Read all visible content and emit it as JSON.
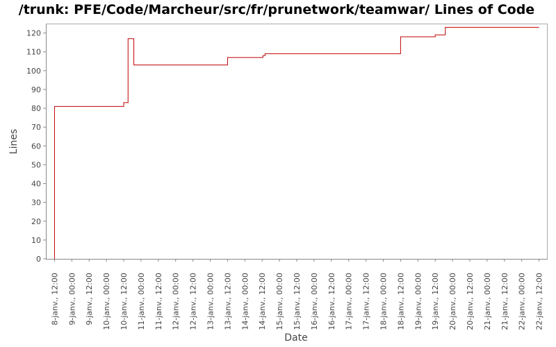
{
  "chart_data": {
    "type": "line",
    "title": "/trunk: PFE/Code/Marcheur/src/fr/prunetwork/teamwar/ Lines of Code",
    "xlabel": "Date",
    "ylabel": "Lines",
    "ylim": [
      0,
      125
    ],
    "yticks": [
      0,
      10,
      20,
      30,
      40,
      50,
      60,
      70,
      80,
      90,
      100,
      110,
      120
    ],
    "xlim": [
      "8 janv. 06:00",
      "22 janv. 18:00"
    ],
    "xtick_labels": [
      "8-janv., 12:00",
      "9-janv., 00:00",
      "9-janv., 12:00",
      "10-janv., 00:00",
      "10-janv., 12:00",
      "11-janv., 00:00",
      "11-janv., 12:00",
      "12-janv., 00:00",
      "12-janv., 12:00",
      "13-janv., 00:00",
      "13-janv., 12:00",
      "14-janv., 00:00",
      "14-janv., 12:00",
      "15-janv., 00:00",
      "15-janv., 12:00",
      "16-janv., 00:00",
      "16-janv., 12:00",
      "17-janv., 00:00",
      "17-janv., 12:00",
      "18-janv., 00:00",
      "18-janv., 12:00",
      "19-janv., 00:00",
      "19-janv., 12:00",
      "20-janv., 00:00",
      "20-janv., 12:00",
      "21-janv., 00:00",
      "21-janv., 12:00",
      "22-janv., 00:00",
      "22-janv., 12:00"
    ],
    "step": true,
    "grid": false,
    "colors": {
      "line": "#c00000",
      "axis": "#888888",
      "text": "#444444"
    },
    "series": [
      {
        "x": [
          "8 janv. 12:00",
          "10 janv. 12:00",
          "10 janv. 15:00",
          "10 janv. 16:00",
          "10 janv. 19:00",
          "13 janv. 12:00",
          "14 janv. 12:30",
          "14 janv. 14:00",
          "18 janv. 12:00",
          "19 janv. 12:00",
          "19 janv. 19:00",
          "22 janv. 12:00"
        ],
        "y": [
          81,
          83,
          117,
          117,
          103,
          107,
          108,
          109,
          118,
          119,
          123,
          123
        ]
      }
    ]
  }
}
